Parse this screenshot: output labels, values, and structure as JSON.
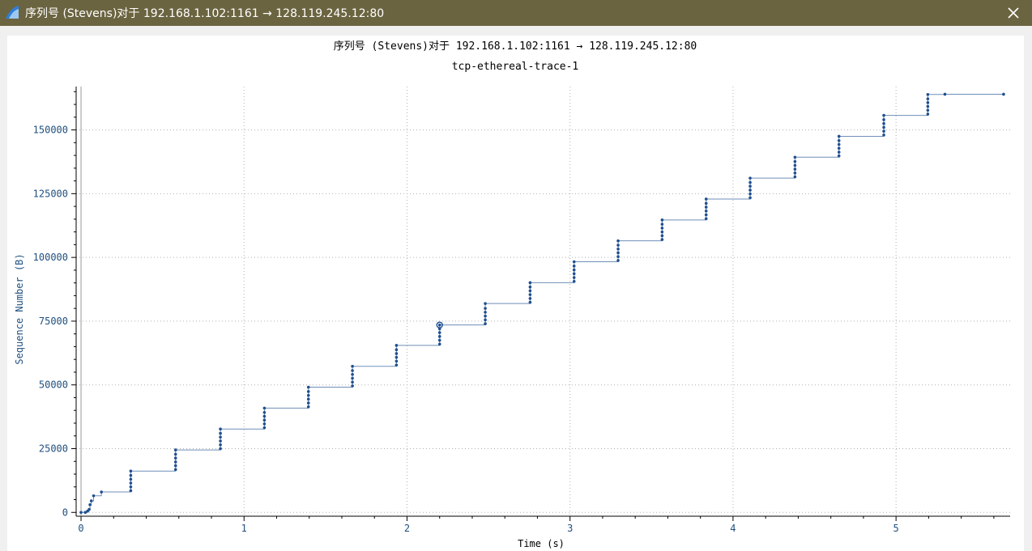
{
  "window": {
    "title": "序列号 (Stevens)对于 192.168.1.102:1161 → 128.119.245.12:80",
    "app_icon": "wireshark-fin-icon",
    "close_icon": "close-icon"
  },
  "colors": {
    "titlebar": "#6b6440",
    "series": "#1f4f8f",
    "line": "#6f8fb8",
    "grid": "#b0b0b0",
    "tick_text": "#1f4f7f"
  },
  "chart_data": {
    "type": "scatter",
    "title": "序列号 (Stevens)对于 192.168.1.102:1161 → 128.119.245.12:80",
    "subtitle": "tcp-ethereal-trace-1",
    "xlabel": "Time (s)",
    "ylabel": "Sequence Number (B)",
    "xlim": [
      -0.03,
      5.7
    ],
    "ylim": [
      -1500,
      167000
    ],
    "xticks": [
      "0",
      "1",
      "2",
      "3",
      "4",
      "5"
    ],
    "yticks": [
      "0",
      "25000",
      "50000",
      "75000",
      "100000",
      "125000",
      "150000"
    ],
    "xtick_values": [
      0,
      1,
      2,
      3,
      4,
      5
    ],
    "ytick_values": [
      0,
      25000,
      50000,
      75000,
      100000,
      125000,
      150000
    ],
    "grid": true,
    "step_line": true,
    "highlight_point": [
      2.2,
      73500
    ],
    "series": [
      {
        "x": [
          0.0,
          0.026,
          0.04,
          0.05,
          0.055,
          0.063,
          0.077,
          0.125,
          0.305,
          0.305,
          0.305,
          0.305,
          0.305,
          0.305,
          0.58,
          0.58,
          0.58,
          0.58,
          0.58,
          0.58,
          0.855,
          0.855,
          0.855,
          0.855,
          0.855,
          0.855,
          1.125,
          1.125,
          1.125,
          1.125,
          1.125,
          1.125,
          1.395,
          1.395,
          1.395,
          1.395,
          1.395,
          1.395,
          1.665,
          1.665,
          1.665,
          1.665,
          1.665,
          1.665,
          1.935,
          1.935,
          1.935,
          1.935,
          1.935,
          1.935,
          2.2,
          2.2,
          2.2,
          2.2,
          2.2,
          2.2,
          2.48,
          2.48,
          2.48,
          2.48,
          2.48,
          2.48,
          2.755,
          2.755,
          2.755,
          2.755,
          2.755,
          2.755,
          3.025,
          3.025,
          3.025,
          3.025,
          3.025,
          3.025,
          3.295,
          3.295,
          3.295,
          3.295,
          3.295,
          3.295,
          3.565,
          3.565,
          3.565,
          3.565,
          3.565,
          3.565,
          3.835,
          3.835,
          3.835,
          3.835,
          3.835,
          3.835,
          4.105,
          4.105,
          4.105,
          4.105,
          4.105,
          4.105,
          4.38,
          4.38,
          4.38,
          4.38,
          4.38,
          4.38,
          4.65,
          4.65,
          4.65,
          4.65,
          4.65,
          4.65,
          4.925,
          4.925,
          4.925,
          4.925,
          4.925,
          4.925,
          5.195,
          5.195,
          5.195,
          5.195,
          5.195,
          5.195,
          5.3,
          5.66
        ],
        "y": [
          0,
          0,
          500,
          1200,
          3000,
          4500,
          6500,
          8000,
          8500,
          10000,
          11500,
          13000,
          14500,
          16200,
          16800,
          18300,
          19800,
          21300,
          22800,
          24500,
          25000,
          26500,
          28000,
          29500,
          31000,
          32700,
          33200,
          34700,
          36200,
          37700,
          39200,
          40900,
          41400,
          42900,
          44400,
          45900,
          47400,
          49100,
          49600,
          51100,
          52600,
          54100,
          55600,
          57300,
          57800,
          59300,
          60800,
          62300,
          63800,
          65500,
          66000,
          67500,
          69000,
          70500,
          72000,
          73500,
          74000,
          75500,
          77000,
          78500,
          80000,
          81900,
          82400,
          83900,
          85400,
          86900,
          88400,
          90100,
          90600,
          92100,
          93600,
          95100,
          96600,
          98300,
          98800,
          100300,
          101800,
          103300,
          104800,
          106500,
          107000,
          108500,
          110000,
          111500,
          113000,
          114700,
          115200,
          116700,
          118200,
          119700,
          121200,
          122900,
          123400,
          124900,
          126400,
          127900,
          129400,
          131100,
          131600,
          133100,
          134600,
          136100,
          137600,
          139300,
          139800,
          141300,
          142800,
          144300,
          145800,
          147500,
          148000,
          149500,
          151000,
          152500,
          154000,
          155700,
          156200,
          157700,
          159200,
          160700,
          162200,
          163900,
          164000,
          164000
        ]
      }
    ]
  }
}
